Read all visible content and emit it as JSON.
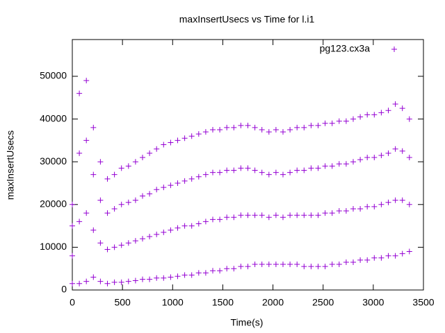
{
  "chart_data": {
    "type": "scatter",
    "title": "maxInsertUsecs vs Time for l.i1",
    "x_label": "Time(s)",
    "y_label": "maxInsertUsecs",
    "xlim": [
      0,
      3500
    ],
    "ylim": [
      0,
      58600
    ],
    "xticks": [
      0,
      500,
      1000,
      1500,
      2000,
      2500,
      3000,
      3500
    ],
    "yticks": [
      0,
      10000,
      20000,
      30000,
      40000,
      50000
    ],
    "legend": "top right",
    "grid": false,
    "series": [
      {
        "name": "pg123.cx3a",
        "color": "#9400d3",
        "x": [
          0,
          0,
          0,
          0,
          70,
          70,
          70,
          70,
          140,
          140,
          140,
          140,
          210,
          210,
          210,
          210,
          280,
          280,
          280,
          280,
          350,
          350,
          350,
          350,
          420,
          420,
          420,
          420,
          490,
          490,
          490,
          490,
          560,
          560,
          560,
          560,
          630,
          630,
          630,
          630,
          700,
          700,
          700,
          700,
          770,
          770,
          770,
          770,
          840,
          840,
          840,
          840,
          910,
          910,
          910,
          910,
          980,
          980,
          980,
          980,
          1050,
          1050,
          1050,
          1050,
          1120,
          1120,
          1120,
          1120,
          1190,
          1190,
          1190,
          1190,
          1260,
          1260,
          1260,
          1260,
          1330,
          1330,
          1330,
          1330,
          1400,
          1400,
          1400,
          1400,
          1470,
          1470,
          1470,
          1470,
          1540,
          1540,
          1540,
          1540,
          1610,
          1610,
          1610,
          1610,
          1680,
          1680,
          1680,
          1680,
          1750,
          1750,
          1750,
          1750,
          1820,
          1820,
          1820,
          1820,
          1890,
          1890,
          1890,
          1890,
          1960,
          1960,
          1960,
          1960,
          2030,
          2030,
          2030,
          2030,
          2100,
          2100,
          2100,
          2100,
          2170,
          2170,
          2170,
          2170,
          2240,
          2240,
          2240,
          2240,
          2310,
          2310,
          2310,
          2310,
          2380,
          2380,
          2380,
          2380,
          2450,
          2450,
          2450,
          2450,
          2520,
          2520,
          2520,
          2520,
          2590,
          2590,
          2590,
          2590,
          2660,
          2660,
          2660,
          2660,
          2730,
          2730,
          2730,
          2730,
          2800,
          2800,
          2800,
          2800,
          2870,
          2870,
          2870,
          2870,
          2940,
          2940,
          2940,
          2940,
          3010,
          3010,
          3010,
          3010,
          3080,
          3080,
          3080,
          3080,
          3150,
          3150,
          3150,
          3150,
          3220,
          3220,
          3220,
          3220,
          3290,
          3290,
          3290,
          3290,
          3360,
          3360,
          3360,
          3360
        ],
        "values": [
          1500,
          8000,
          15000,
          20000,
          1500,
          16000,
          32000,
          46000,
          2000,
          18000,
          35000,
          49000,
          3000,
          14000,
          27000,
          38000,
          2000,
          11000,
          21000,
          30000,
          1500,
          9500,
          18000,
          26000,
          1800,
          10000,
          19000,
          27000,
          1800,
          10500,
          20000,
          28500,
          2000,
          11000,
          20500,
          29000,
          2200,
          11500,
          21000,
          30000,
          2500,
          12000,
          22000,
          31000,
          2500,
          12500,
          22500,
          32000,
          2800,
          13000,
          23500,
          33000,
          2800,
          13500,
          24000,
          34000,
          3000,
          14000,
          24500,
          34500,
          3200,
          14500,
          25000,
          35000,
          3500,
          15000,
          25500,
          35500,
          3500,
          15000,
          26000,
          36000,
          4000,
          15500,
          26500,
          36500,
          4000,
          16000,
          27000,
          37000,
          4500,
          16500,
          27500,
          37500,
          4500,
          16500,
          27500,
          37500,
          5000,
          17000,
          28000,
          38000,
          5000,
          17000,
          28000,
          38000,
          5500,
          17500,
          28500,
          38500,
          5500,
          17500,
          28500,
          38500,
          6000,
          17500,
          28000,
          38000,
          6000,
          17500,
          27500,
          37500,
          6000,
          17000,
          27000,
          37000,
          6000,
          17500,
          27500,
          37500,
          6000,
          17000,
          27000,
          37000,
          6000,
          17500,
          27500,
          37500,
          6000,
          17500,
          28000,
          38000,
          5500,
          17500,
          28000,
          38000,
          5500,
          17500,
          28500,
          38500,
          5500,
          17500,
          28500,
          38500,
          5500,
          18000,
          29000,
          39000,
          6000,
          18000,
          29000,
          39000,
          6000,
          18500,
          29500,
          39500,
          6500,
          18500,
          29500,
          39500,
          6500,
          19000,
          30000,
          40000,
          7000,
          19000,
          30500,
          40500,
          7000,
          19500,
          31000,
          41000,
          7500,
          19500,
          31000,
          41000,
          7500,
          20000,
          31500,
          41500,
          8000,
          20500,
          32000,
          42000,
          8000,
          21000,
          33000,
          43500,
          8500,
          21000,
          32500,
          42500,
          9000,
          20000,
          31000,
          40000
        ]
      }
    ]
  }
}
